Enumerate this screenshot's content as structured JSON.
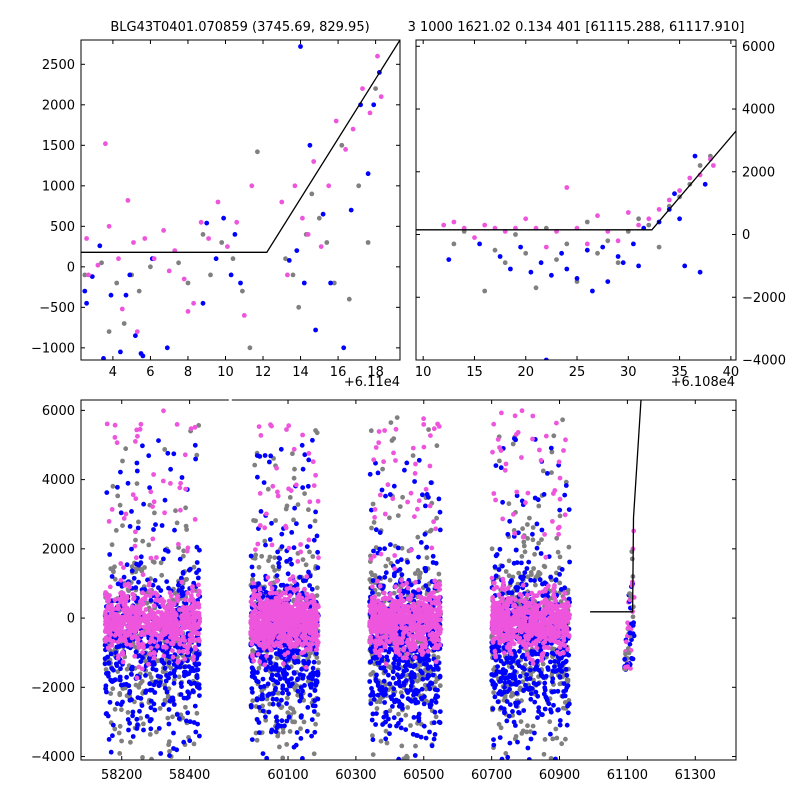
{
  "colors": {
    "grey": "#808080",
    "blue": "#0000ff",
    "magenta": "#ee55dd",
    "model": "#000000",
    "axes": "#000000"
  },
  "chart_data": [
    {
      "id": "top-left",
      "type": "scatter",
      "title": "BLG43T0401.070859 (3745.69, 829.95)",
      "xlim": [
        2.3,
        19.3
      ],
      "ylim": [
        -1150,
        2800
      ],
      "xticks": [
        4,
        6,
        8,
        10,
        12,
        14,
        16,
        18
      ],
      "yticks": [
        -1000,
        -500,
        0,
        500,
        1000,
        1500,
        2000,
        2500
      ],
      "offset_label": "+6.11e4",
      "model": {
        "x": [
          2.3,
          12.2,
          19.3
        ],
        "y": [
          180,
          180,
          2800
        ]
      },
      "series": [
        {
          "name": "grey",
          "x": [
            2.5,
            3.4,
            3.8,
            4.2,
            4.6,
            5.0,
            5.4,
            6.0,
            7.5,
            8.0,
            8.8,
            9.2,
            9.8,
            10.4,
            10.9,
            11.3,
            11.7,
            13.2,
            13.6,
            13.9,
            14.3,
            14.6,
            15.0,
            15.4,
            15.8,
            16.2,
            16.6,
            17.1,
            17.6,
            18.0
          ],
          "y": [
            -100,
            50,
            -800,
            -200,
            -700,
            -100,
            -300,
            0,
            50,
            -200,
            400,
            -100,
            300,
            100,
            -300,
            -1000,
            1420,
            100,
            -100,
            -500,
            400,
            900,
            600,
            300,
            -200,
            1500,
            -400,
            1000,
            300,
            2200
          ]
        },
        {
          "name": "blue",
          "x": [
            2.5,
            2.6,
            2.9,
            3.3,
            3.5,
            3.9,
            4.4,
            4.7,
            4.9,
            5.2,
            5.5,
            5.6,
            6.1,
            6.9,
            8.8,
            9.0,
            9.5,
            9.9,
            10.3,
            10.5,
            10.8,
            13.4,
            13.8,
            14.0,
            14.2,
            14.5,
            14.8,
            15.2,
            15.6,
            16.3,
            16.7,
            17.2,
            17.6,
            17.9,
            18.2
          ],
          "y": [
            -300,
            -450,
            -120,
            260,
            -1130,
            -350,
            -1050,
            -350,
            -100,
            -850,
            -1070,
            -1100,
            100,
            -1000,
            -450,
            540,
            100,
            600,
            -100,
            400,
            -200,
            80,
            200,
            2720,
            -200,
            1500,
            -780,
            650,
            -200,
            -1000,
            700,
            2000,
            1150,
            2000,
            2400
          ]
        },
        {
          "name": "magenta",
          "x": [
            2.6,
            2.7,
            3.2,
            3.6,
            3.8,
            4.3,
            4.5,
            4.8,
            5.1,
            5.3,
            5.7,
            6.2,
            6.7,
            7.0,
            7.3,
            7.8,
            8.0,
            8.3,
            8.7,
            9.1,
            9.6,
            10.1,
            10.6,
            11.0,
            11.4,
            13.0,
            13.3,
            13.7,
            14.1,
            14.4,
            14.7,
            15.1,
            15.5,
            15.9,
            16.4,
            16.8,
            17.3,
            17.7,
            18.1,
            18.3
          ],
          "y": [
            350,
            -100,
            20,
            1520,
            500,
            100,
            -520,
            820,
            300,
            -800,
            350,
            100,
            450,
            -50,
            200,
            -150,
            -550,
            -450,
            550,
            350,
            800,
            250,
            550,
            -600,
            1000,
            800,
            -100,
            1000,
            600,
            400,
            1300,
            250,
            1000,
            1800,
            1450,
            1700,
            2200,
            1900,
            2600,
            2100
          ]
        }
      ]
    },
    {
      "id": "top-right",
      "type": "scatter",
      "title": "3 1000 1621.02 0.134 401 [61115.288, 61117.910]",
      "xlim": [
        9.3,
        40.5
      ],
      "ylim": [
        -4000,
        6200
      ],
      "xticks": [
        10,
        15,
        20,
        25,
        30,
        35,
        40
      ],
      "yticks": [
        -4000,
        -2000,
        0,
        2000,
        4000,
        6000
      ],
      "offset_label": "+6.108e4",
      "model": {
        "x": [
          9.3,
          32.3,
          40.5
        ],
        "y": [
          150,
          150,
          3300
        ]
      },
      "series": [
        {
          "name": "grey",
          "x": [
            13,
            14,
            16,
            17,
            18,
            19,
            20,
            21,
            22,
            23,
            24,
            25,
            26,
            27,
            28,
            29,
            30,
            31,
            32,
            33,
            34,
            35,
            36,
            37,
            38
          ],
          "y": [
            -300,
            100,
            -1800,
            -500,
            -900,
            0,
            -600,
            -1700,
            200,
            -800,
            -300,
            -1500,
            400,
            -600,
            -200,
            -900,
            100,
            500,
            300,
            -400,
            900,
            1200,
            1600,
            2200,
            2500
          ]
        },
        {
          "name": "blue",
          "x": [
            12.5,
            15.5,
            17.5,
            18.5,
            19.5,
            20.5,
            21.5,
            22,
            22.5,
            23.5,
            24,
            25,
            26,
            26.5,
            27.5,
            28,
            29,
            29.5,
            30.5,
            31,
            31.5,
            33,
            34,
            34.5,
            35,
            35.5,
            36.5,
            37,
            37.5
          ],
          "y": [
            -800,
            -300,
            -700,
            -1100,
            -400,
            -1200,
            -900,
            -4000,
            -1300,
            -600,
            -1100,
            -1400,
            -500,
            -1800,
            -400,
            -1500,
            -700,
            -900,
            -300,
            -1000,
            200,
            400,
            800,
            1300,
            500,
            -1000,
            2500,
            -1200,
            1600
          ]
        },
        {
          "name": "magenta",
          "x": [
            12,
            13,
            14,
            15,
            16,
            17,
            18,
            19,
            20,
            21,
            22,
            23,
            24,
            25,
            26,
            27,
            28,
            29,
            30,
            31,
            32,
            33,
            34,
            35,
            36,
            37,
            38,
            38.3
          ],
          "y": [
            300,
            400,
            200,
            -100,
            300,
            200,
            100,
            200,
            500,
            200,
            -400,
            100,
            1500,
            200,
            -300,
            600,
            100,
            -200,
            700,
            300,
            500,
            800,
            1100,
            1400,
            1800,
            1900,
            2400,
            2200
          ]
        }
      ]
    },
    {
      "id": "bottom",
      "type": "scatter",
      "title": "",
      "xlim": [
        58080,
        61420
      ],
      "ylim": [
        -4100,
        6300
      ],
      "xticks": [
        58200,
        58400,
        60100,
        60300,
        60500,
        60700,
        60900,
        61100,
        61300
      ],
      "yticks": [
        -4000,
        -2000,
        0,
        2000,
        4000,
        6000
      ],
      "xbreak": {
        "left_max": 58500,
        "right_min": 59950
      },
      "model": {
        "x": [
          60990,
          61115.3,
          61117.9,
          61140
        ],
        "y": [
          180,
          180,
          2900,
          6300
        ]
      },
      "seasons": [
        {
          "start": 58150,
          "end": 58430,
          "peak": 6000
        },
        {
          "start": 59990,
          "end": 60190,
          "peak": 5600
        },
        {
          "start": 60340,
          "end": 60550,
          "peak": 6000
        },
        {
          "start": 60700,
          "end": 60930,
          "peak": 6000
        }
      ],
      "event": {
        "start": 61090,
        "end": 61120
      }
    }
  ]
}
